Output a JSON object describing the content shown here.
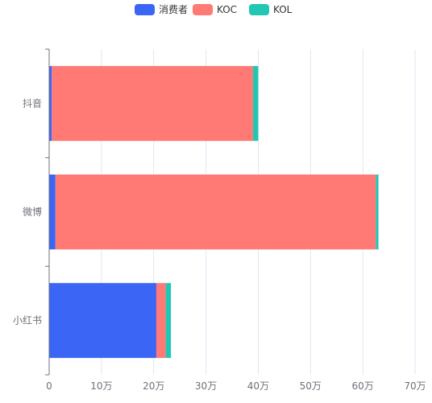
{
  "chart_data": {
    "type": "bar",
    "orientation": "horizontal",
    "stacked": true,
    "categories": [
      "抖音",
      "微博",
      "小红书"
    ],
    "series": [
      {
        "name": "消费者",
        "color": "#3b66f5",
        "values": [
          5000,
          12000,
          205000
        ]
      },
      {
        "name": "KOC",
        "color": "#ff7a74",
        "values": [
          385000,
          613000,
          18000
        ]
      },
      {
        "name": "KOL",
        "color": "#22c7b4",
        "values": [
          10000,
          5000,
          10000
        ]
      }
    ],
    "xlim": [
      0,
      700000
    ],
    "x_ticks": [
      0,
      100000,
      200000,
      300000,
      400000,
      500000,
      600000,
      700000
    ],
    "x_tick_labels": [
      "0",
      "10万",
      "20万",
      "30万",
      "40万",
      "50万",
      "60万",
      "70万"
    ],
    "grid": true,
    "legend_position": "top-center"
  }
}
